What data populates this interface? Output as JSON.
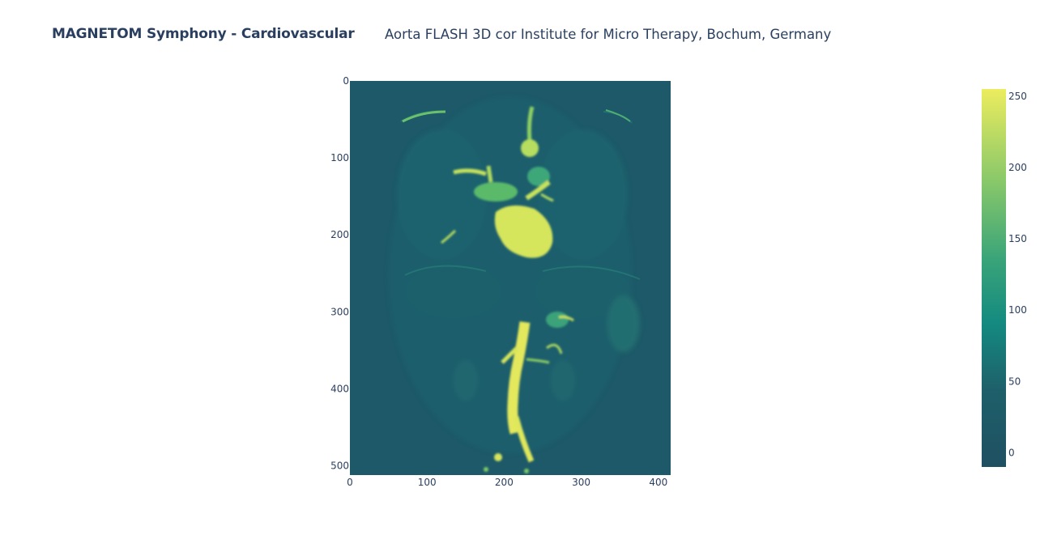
{
  "title": {
    "main": "MAGNETOM Symphony - Cardiovascular",
    "sub": "Aorta FLASH 3D cor Institute for Micro Therapy, Bochum, Germany"
  },
  "chart_data": {
    "type": "heatmap",
    "title": "MAGNETOM Symphony - Cardiovascular",
    "subtitle": "Aorta FLASH 3D cor Institute for Micro Therapy, Bochum, Germany",
    "xlabel": "",
    "ylabel": "",
    "xlim": [
      0,
      416
    ],
    "ylim": [
      512,
      0
    ],
    "x_ticks": [
      0,
      100,
      200,
      300,
      400
    ],
    "y_ticks": [
      0,
      100,
      200,
      300,
      400,
      500
    ],
    "colorscale": "Viridis",
    "colorscale_stops": [
      "#440154",
      "#3b528b",
      "#21918c",
      "#5ec962",
      "#fde725"
    ],
    "colorbar_range": [
      -10,
      255
    ],
    "colorbar_ticks": [
      0,
      50,
      100,
      150,
      200,
      250
    ],
    "background_intensity": 40,
    "grid": false
  }
}
